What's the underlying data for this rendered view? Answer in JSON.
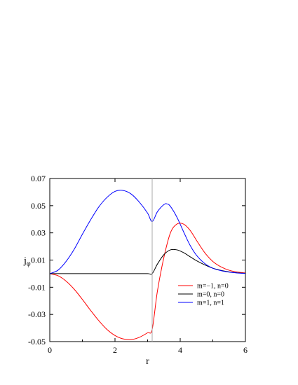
{
  "chart_data": {
    "type": "line",
    "title": "",
    "xlabel": "r",
    "ylabel": "j",
    "ylabel_sub": "φ",
    "xlim": [
      0,
      6
    ],
    "ylim": [
      -0.05,
      0.07
    ],
    "xticks": [
      0,
      2,
      4,
      6
    ],
    "xtick_labels": [
      "0",
      "2",
      "4",
      "6"
    ],
    "yticks": [
      -0.05,
      -0.03,
      -0.01,
      0.01,
      0.03,
      0.05,
      0.07
    ],
    "ytick_labels": [
      "-0.05",
      "-0.03",
      "-0.01",
      "0.01",
      "0.03",
      "0.05",
      "0.07"
    ],
    "grid": false,
    "legend_position": "bottom-right",
    "vertical_line_x": 3.14,
    "series": [
      {
        "name": "m=−1, n=0",
        "color": "#ff0000",
        "x": [
          0,
          0.25,
          0.5,
          0.75,
          1.0,
          1.25,
          1.5,
          1.75,
          2.0,
          2.25,
          2.5,
          2.75,
          3.0,
          3.14,
          3.3,
          3.5,
          3.7,
          3.9,
          4.1,
          4.3,
          4.5,
          4.75,
          5.0,
          5.25,
          5.5,
          5.75,
          6.0
        ],
        "y": [
          0.0,
          -0.0015,
          -0.0055,
          -0.0115,
          -0.019,
          -0.027,
          -0.0345,
          -0.041,
          -0.0455,
          -0.048,
          -0.0485,
          -0.0468,
          -0.0435,
          -0.041,
          -0.013,
          0.012,
          0.03,
          0.0365,
          0.0365,
          0.032,
          0.0245,
          0.0155,
          0.009,
          0.005,
          0.0025,
          0.0012,
          0.0005
        ]
      },
      {
        "name": "m=0, n=0",
        "color": "#000000",
        "x": [
          0,
          0.5,
          1.0,
          1.5,
          2.0,
          2.5,
          3.0,
          3.14,
          3.3,
          3.5,
          3.7,
          3.9,
          4.1,
          4.3,
          4.5,
          4.75,
          5.0,
          5.25,
          5.5,
          5.75,
          6.0
        ],
        "y": [
          0.0,
          0.0,
          0.0,
          0.0,
          0.0,
          0.0,
          0.0,
          0.0,
          0.007,
          0.014,
          0.0175,
          0.0175,
          0.0155,
          0.0125,
          0.0095,
          0.0065,
          0.004,
          0.0024,
          0.0013,
          0.0006,
          0.0002
        ]
      },
      {
        "name": "m=1, n=1",
        "color": "#0000ff",
        "x": [
          0,
          0.25,
          0.5,
          0.75,
          1.0,
          1.25,
          1.5,
          1.75,
          2.0,
          2.25,
          2.5,
          2.75,
          3.0,
          3.14,
          3.3,
          3.5,
          3.6,
          3.7,
          3.9,
          4.1,
          4.3,
          4.5,
          4.75,
          5.0,
          5.25,
          5.5,
          5.75,
          6.0
        ],
        "y": [
          0.0,
          0.0025,
          0.009,
          0.018,
          0.029,
          0.0395,
          0.049,
          0.056,
          0.0605,
          0.0612,
          0.0585,
          0.0525,
          0.0445,
          0.0383,
          0.0455,
          0.0508,
          0.0513,
          0.0495,
          0.0415,
          0.031,
          0.021,
          0.0135,
          0.0075,
          0.004,
          0.0022,
          0.0011,
          0.0005,
          0.0002
        ]
      }
    ]
  }
}
